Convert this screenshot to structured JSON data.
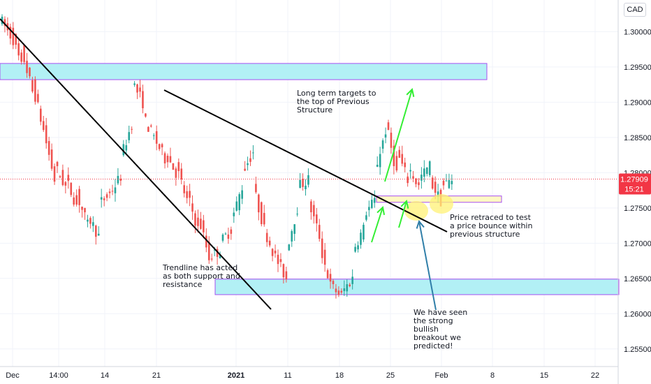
{
  "currency": "CAD",
  "chart_data": {
    "type": "candlestick",
    "symbol_currency": "CAD",
    "ylim": [
      1.2525,
      1.3045
    ],
    "y_ticks": [
      "1.30000",
      "1.29500",
      "1.29000",
      "1.28500",
      "1.28000",
      "1.27500",
      "1.27000",
      "1.26500",
      "1.26000",
      "1.25500"
    ],
    "y_tick_values": [
      1.3,
      1.295,
      1.29,
      1.285,
      1.28,
      1.275,
      1.27,
      1.265,
      1.26,
      1.255
    ],
    "x_ticks": [
      {
        "label": "Dec",
        "bold": false
      },
      {
        "label": "14:00",
        "bold": false
      },
      {
        "label": "14",
        "bold": false
      },
      {
        "label": "21",
        "bold": false
      },
      {
        "label": "2021",
        "bold": true
      },
      {
        "label": "11",
        "bold": false
      },
      {
        "label": "18",
        "bold": false
      },
      {
        "label": "25",
        "bold": false
      },
      {
        "label": "Feb",
        "bold": false
      },
      {
        "label": "8",
        "bold": false
      },
      {
        "label": "15",
        "bold": false
      },
      {
        "label": "22",
        "bold": false
      }
    ],
    "last_price": "1.27909",
    "last_price_value": 1.27909,
    "countdown": "15:21",
    "colors": {
      "up": "#26a69a",
      "down": "#ef5350",
      "price_tag": "#f23645",
      "zone_fill": "#b2f0f5",
      "zone_border": "#a64ff0",
      "small_zone_fill": "#fff9c4",
      "highlight": "#fff176",
      "arrow_green": "#33ee33",
      "arrow_blue": "#2f7ea8"
    },
    "zones": [
      {
        "name": "previous-structure-top",
        "price_top": 1.2955,
        "price_bottom": 1.2932
      },
      {
        "name": "support-zone",
        "price_top": 1.2649,
        "price_bottom": 1.2627
      },
      {
        "name": "retest-zone",
        "price_top": 1.2767,
        "price_bottom": 1.2758
      }
    ],
    "annotations": {
      "long_term": [
        "Long term targets to",
        "the top of Previous",
        "Structure"
      ],
      "trendline": [
        "Trendline has acted",
        "as both support and",
        "resistance"
      ],
      "retrace": [
        "Price retraced to test",
        "a price bounce within",
        "previous structure"
      ],
      "breakout": [
        "We have seen",
        "the strong",
        "bullish",
        "breakout we",
        "predicted!"
      ]
    },
    "anchors": [
      [
        1.302,
        1.2995
      ],
      [
        1.3002,
        1.295
      ],
      [
        1.2975,
        1.2915
      ],
      [
        1.2925,
        1.286
      ],
      [
        1.286,
        1.279
      ],
      [
        1.281,
        1.278
      ],
      [
        1.279,
        1.2755
      ],
      [
        1.277,
        1.2725
      ],
      [
        1.274,
        1.271
      ],
      [
        1.2755,
        1.277
      ],
      [
        1.277,
        1.2795
      ],
      [
        1.282,
        1.287
      ],
      [
        1.293,
        1.29
      ],
      [
        1.288,
        1.285
      ],
      [
        1.285,
        1.282
      ],
      [
        1.283,
        1.28
      ],
      [
        1.281,
        1.276
      ],
      [
        1.277,
        1.272
      ],
      [
        1.274,
        1.268
      ],
      [
        1.268,
        1.269
      ],
      [
        1.27,
        1.272
      ],
      [
        1.273,
        1.278
      ],
      [
        1.28,
        1.283
      ],
      [
        1.278,
        1.272
      ],
      [
        1.272,
        1.268
      ],
      [
        1.268,
        1.265
      ],
      [
        1.269,
        1.275
      ],
      [
        1.278,
        1.279
      ],
      [
        1.276,
        1.271
      ],
      [
        1.27,
        1.264
      ],
      [
        1.264,
        1.2625
      ],
      [
        1.263,
        1.265
      ],
      [
        1.269,
        1.272
      ],
      [
        1.274,
        1.276
      ],
      [
        1.28,
        1.286
      ],
      [
        1.287,
        1.28
      ],
      [
        1.283,
        1.279
      ],
      [
        1.281,
        1.278
      ],
      [
        1.279,
        1.281
      ],
      [
        1.279,
        1.276
      ],
      [
        1.278,
        1.279
      ]
    ]
  }
}
